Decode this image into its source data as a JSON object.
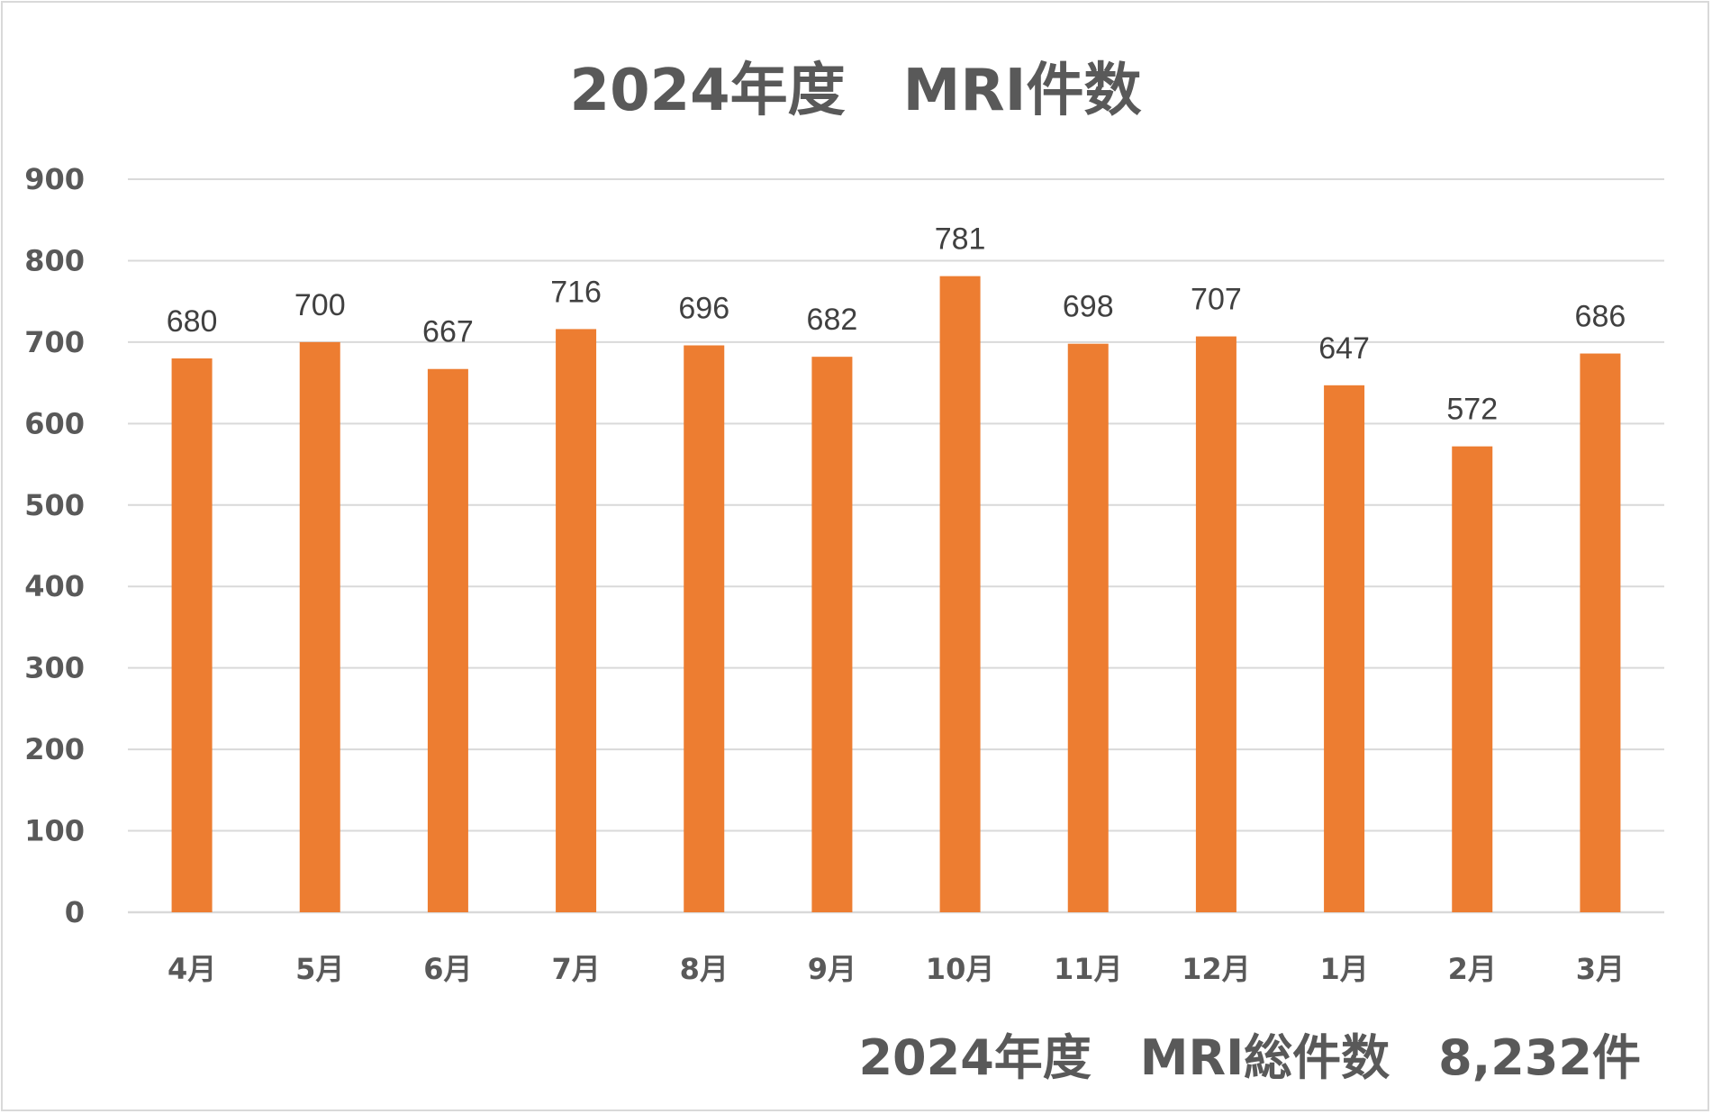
{
  "chart_data": {
    "type": "bar",
    "title": "2024年度　MRI件数",
    "categories": [
      "4月",
      "5月",
      "6月",
      "7月",
      "8月",
      "9月",
      "10月",
      "11月",
      "12月",
      "1月",
      "2月",
      "3月"
    ],
    "values": [
      680,
      700,
      667,
      716,
      696,
      682,
      781,
      698,
      707,
      647,
      572,
      686
    ],
    "data_labels": [
      "680",
      "700",
      "667",
      "716",
      "696",
      "682",
      "781",
      "698",
      "707",
      "647",
      "572",
      "686"
    ],
    "ylim": [
      0,
      900
    ],
    "yticks": [
      "0",
      "100",
      "200",
      "300",
      "400",
      "500",
      "600",
      "700",
      "800",
      "900"
    ],
    "xlabel": "",
    "ylabel": "",
    "grid": true,
    "legend": "none",
    "bar_color": "#ED7D31",
    "annotation": "2024年度　MRI総件数　8,232件"
  }
}
